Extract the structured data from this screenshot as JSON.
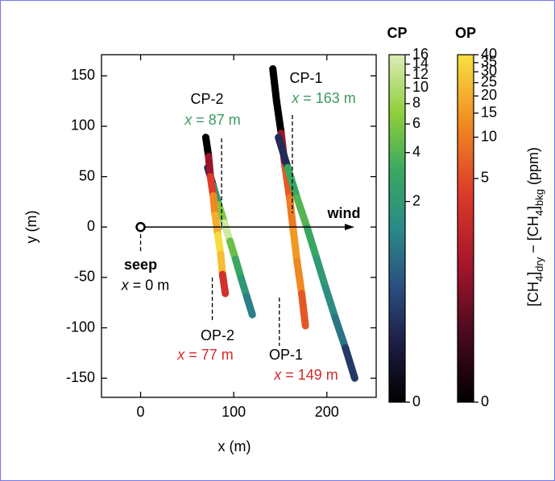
{
  "chart_data": {
    "type": "transect",
    "xlabel": "x (m)",
    "ylabel": "y (m)",
    "xlim": [
      -42,
      253
    ],
    "ylim": [
      -169,
      171
    ],
    "xticks": [
      0,
      100,
      200
    ],
    "yticks": [
      -150,
      -100,
      -50,
      0,
      50,
      100,
      150
    ],
    "series": [
      {
        "colorbar": 0,
        "x": [
          72,
          78,
          84,
          90,
          96,
          102,
          108,
          114,
          120
        ],
        "y": [
          59,
          41,
          22,
          4,
          -14,
          -32,
          -51,
          -69,
          -87
        ],
        "values": [
          0.5,
          2,
          6,
          14,
          5,
          3,
          2,
          1.2,
          0.8
        ]
      },
      {
        "colorbar": 1,
        "x": [
          70,
          73,
          75,
          78,
          80,
          83,
          86,
          88,
          91
        ],
        "y": [
          89,
          70,
          50,
          31,
          12,
          -8,
          -27,
          -47,
          -66
        ],
        "values": [
          0,
          1,
          4,
          12,
          20,
          38,
          25,
          3,
          0.5
        ]
      },
      {
        "colorbar": 1,
        "x": [
          142,
          146,
          151,
          155,
          160,
          164,
          168,
          173,
          177
        ],
        "y": [
          157,
          125,
          93,
          61,
          29,
          -3,
          -34,
          -66,
          -98
        ],
        "values": [
          0,
          0,
          1,
          6,
          10,
          15,
          12,
          6,
          0.5
        ]
      },
      {
        "colorbar": 0,
        "x": [
          148,
          158,
          168,
          179,
          189,
          199,
          209,
          220,
          230
        ],
        "y": [
          89,
          59,
          29,
          -1,
          -31,
          -61,
          -90,
          -120,
          -150
        ],
        "values": [
          0.5,
          3,
          4,
          3,
          2,
          1.5,
          1,
          0.6,
          0.3
        ]
      }
    ],
    "colorbars": [
      {
        "title": "CP",
        "title_color": "#3a9a5e",
        "lim": [
          0,
          16
        ],
        "ticks": [
          0,
          2,
          4,
          6,
          8,
          10,
          12,
          14,
          16
        ],
        "scale": "symlog",
        "linthresh": 1,
        "linscale": 0.84,
        "colors": [
          "#000000",
          "#1c1c44",
          "#2a4f80",
          "#2a8a88",
          "#3aa860",
          "#8fcf3a",
          "#dcedb6"
        ]
      },
      {
        "title": "OP",
        "title_color": "#d62728",
        "lim": [
          0,
          40
        ],
        "ticks": [
          0,
          5,
          10,
          15,
          20,
          25,
          30,
          35,
          40
        ],
        "scale": "symlog",
        "linthresh": 1,
        "linscale": 0.84,
        "colors": [
          "#000000",
          "#4a0a1e",
          "#a8162c",
          "#dc3a2a",
          "#f08a20",
          "#f8e040"
        ]
      }
    ],
    "colorbar_label": [
      {
        "text": "[CH"
      },
      {
        "text": "4",
        "sub": true
      },
      {
        "text": "]"
      },
      {
        "text": "dry",
        "sub": true
      },
      {
        "text": " − [CH"
      },
      {
        "text": "4",
        "sub": true
      },
      {
        "text": "]"
      },
      {
        "text": "bkg",
        "sub": true
      },
      {
        "text": " (ppm)"
      }
    ],
    "annotations": [
      {
        "label": "CP-2",
        "var": "x",
        "text": " = 87 m",
        "x": 87,
        "color": "#3a9a5e"
      },
      {
        "label": "CP-1",
        "var": "x",
        "text": " = 163 m",
        "x": 163,
        "color": "#3a9a5e"
      },
      {
        "label": "OP-2",
        "var": "x",
        "text": " = 77 m",
        "x": 77,
        "color": "#d62728"
      },
      {
        "label": "OP-1",
        "var": "x",
        "text": " = 149 m",
        "x": 149,
        "color": "#d62728"
      }
    ],
    "seep": {
      "label": "seep",
      "var": "x",
      "text": " = 0 m",
      "x": 0,
      "y": 0
    },
    "wind": {
      "label": "wind"
    }
  }
}
